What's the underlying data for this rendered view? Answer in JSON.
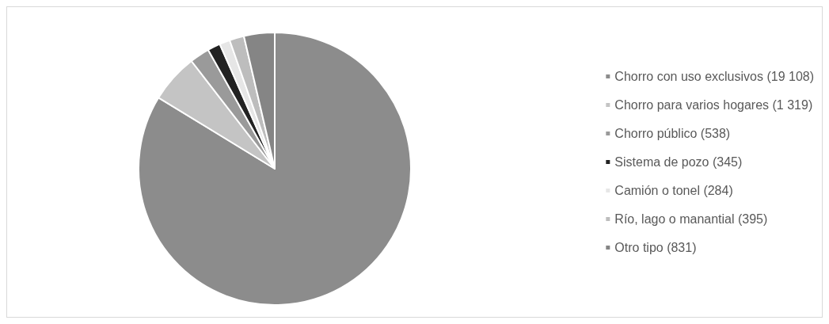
{
  "chart_data": {
    "type": "pie",
    "categories": [
      "Chorro con uso exclusivos (19 108)",
      "Chorro para varios hogares (1 319)",
      "Chorro público (538)",
      "Sistema de pozo (345)",
      "Camión o tonel (284)",
      "Río, lago o manantial (395)",
      "Otro tipo (831)"
    ],
    "values": [
      19108,
      1319,
      538,
      345,
      284,
      395,
      831
    ],
    "colors": [
      "#8c8c8c",
      "#c4c4c4",
      "#9a9a9a",
      "#222222",
      "#e6e6e6",
      "#bdbdbd",
      "#858585"
    ],
    "legend": "right"
  }
}
